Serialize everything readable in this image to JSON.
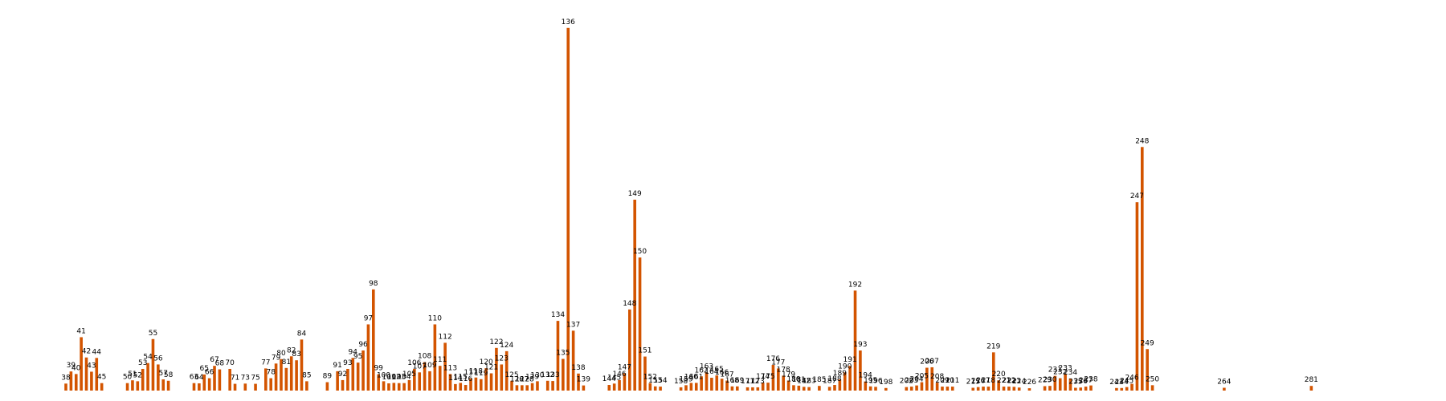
{
  "colors": {
    "bar": "#d35400",
    "label": "#000000",
    "background": "#ffffff"
  },
  "chart_data": {
    "type": "bar",
    "title": "",
    "xlabel": "",
    "ylabel": "",
    "axes_visible": false,
    "grid": false,
    "legend": "none",
    "ylim": [
      0,
      16000
    ],
    "series": [
      {
        "points": [
          [
            38,
            300
          ],
          [
            39,
            820
          ],
          [
            40,
            710
          ],
          [
            41,
            2290
          ],
          [
            42,
            1420
          ],
          [
            43,
            810
          ],
          [
            44,
            1400
          ],
          [
            45,
            320
          ],
          [
            50,
            320
          ],
          [
            51,
            440
          ],
          [
            52,
            400
          ],
          [
            53,
            930
          ],
          [
            54,
            1180
          ],
          [
            55,
            2210
          ],
          [
            56,
            1120
          ],
          [
            57,
            480
          ],
          [
            58,
            420
          ],
          [
            63,
            320
          ],
          [
            64,
            310
          ],
          [
            65,
            690
          ],
          [
            66,
            530
          ],
          [
            67,
            1060
          ],
          [
            68,
            910
          ],
          [
            70,
            930
          ],
          [
            71,
            290
          ],
          [
            73,
            300
          ],
          [
            75,
            290
          ],
          [
            77,
            950
          ],
          [
            78,
            530
          ],
          [
            79,
            1160
          ],
          [
            80,
            1350
          ],
          [
            81,
            970
          ],
          [
            82,
            1470
          ],
          [
            83,
            1300
          ],
          [
            84,
            2190
          ],
          [
            85,
            400
          ],
          [
            89,
            360
          ],
          [
            91,
            830
          ],
          [
            92,
            450
          ],
          [
            93,
            930
          ],
          [
            94,
            1400
          ],
          [
            95,
            1200
          ],
          [
            96,
            1720
          ],
          [
            97,
            2840
          ],
          [
            98,
            4340
          ],
          [
            99,
            700
          ],
          [
            100,
            400
          ],
          [
            101,
            310
          ],
          [
            102,
            330
          ],
          [
            103,
            320
          ],
          [
            104,
            320
          ],
          [
            105,
            450
          ],
          [
            106,
            930
          ],
          [
            107,
            780
          ],
          [
            108,
            1220
          ],
          [
            109,
            830
          ],
          [
            110,
            2840
          ],
          [
            111,
            1060
          ],
          [
            112,
            2050
          ],
          [
            113,
            710
          ],
          [
            114,
            280
          ],
          [
            115,
            330
          ],
          [
            116,
            240
          ],
          [
            117,
            520
          ],
          [
            118,
            560
          ],
          [
            119,
            490
          ],
          [
            120,
            960
          ],
          [
            121,
            740
          ],
          [
            122,
            1830
          ],
          [
            123,
            1120
          ],
          [
            124,
            1690
          ],
          [
            125,
            420
          ],
          [
            126,
            230
          ],
          [
            127,
            230
          ],
          [
            128,
            230
          ],
          [
            129,
            320
          ],
          [
            130,
            400
          ],
          [
            132,
            420
          ],
          [
            133,
            410
          ],
          [
            134,
            2990
          ],
          [
            135,
            1360
          ],
          [
            136,
            15560
          ],
          [
            137,
            2570
          ],
          [
            138,
            730
          ],
          [
            139,
            220
          ],
          [
            144,
            240
          ],
          [
            145,
            300
          ],
          [
            146,
            450
          ],
          [
            147,
            740
          ],
          [
            148,
            3480
          ],
          [
            149,
            8190
          ],
          [
            150,
            5710
          ],
          [
            151,
            1460
          ],
          [
            152,
            320
          ],
          [
            153,
            180
          ],
          [
            154,
            170
          ],
          [
            158,
            140
          ],
          [
            159,
            230
          ],
          [
            160,
            330
          ],
          [
            161,
            330
          ],
          [
            162,
            610
          ],
          [
            163,
            770
          ],
          [
            164,
            550
          ],
          [
            165,
            650
          ],
          [
            166,
            510
          ],
          [
            167,
            430
          ],
          [
            168,
            180
          ],
          [
            169,
            180
          ],
          [
            171,
            140
          ],
          [
            172,
            140
          ],
          [
            173,
            140
          ],
          [
            174,
            340
          ],
          [
            175,
            340
          ],
          [
            176,
            1100
          ],
          [
            177,
            950
          ],
          [
            178,
            640
          ],
          [
            179,
            430
          ],
          [
            180,
            230
          ],
          [
            181,
            210
          ],
          [
            182,
            160
          ],
          [
            183,
            150
          ],
          [
            185,
            200
          ],
          [
            187,
            160
          ],
          [
            188,
            240
          ],
          [
            189,
            480
          ],
          [
            190,
            780
          ],
          [
            191,
            1060
          ],
          [
            192,
            4290
          ],
          [
            193,
            1720
          ],
          [
            194,
            390
          ],
          [
            195,
            180
          ],
          [
            196,
            160
          ],
          [
            198,
            110
          ],
          [
            202,
            150
          ],
          [
            203,
            170
          ],
          [
            204,
            220
          ],
          [
            205,
            360
          ],
          [
            206,
            980
          ],
          [
            207,
            1000
          ],
          [
            208,
            340
          ],
          [
            209,
            170
          ],
          [
            210,
            170
          ],
          [
            211,
            170
          ],
          [
            215,
            120
          ],
          [
            216,
            150
          ],
          [
            217,
            170
          ],
          [
            218,
            170
          ],
          [
            219,
            1640
          ],
          [
            220,
            440
          ],
          [
            221,
            170
          ],
          [
            222,
            170
          ],
          [
            223,
            160
          ],
          [
            224,
            130
          ],
          [
            226,
            100
          ],
          [
            229,
            190
          ],
          [
            230,
            200
          ],
          [
            231,
            630
          ],
          [
            232,
            530
          ],
          [
            233,
            710
          ],
          [
            234,
            520
          ],
          [
            235,
            120
          ],
          [
            236,
            130
          ],
          [
            237,
            170
          ],
          [
            238,
            220
          ],
          [
            243,
            110
          ],
          [
            244,
            110
          ],
          [
            245,
            150
          ],
          [
            246,
            290
          ],
          [
            247,
            8080
          ],
          [
            248,
            10450
          ],
          [
            249,
            1780
          ],
          [
            250,
            230
          ],
          [
            264,
            120
          ],
          [
            281,
            200
          ]
        ]
      }
    ]
  }
}
